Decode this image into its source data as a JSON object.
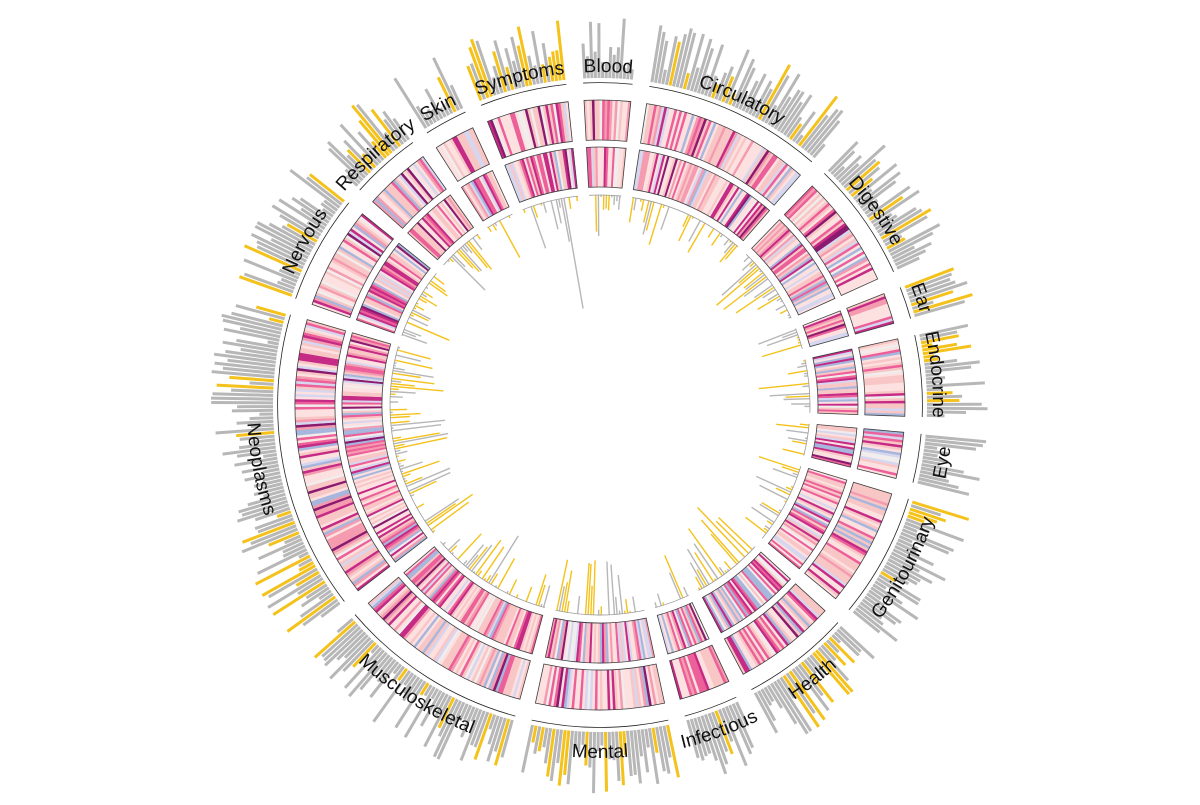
{
  "chart_data": {
    "type": "circular-heatmap",
    "title": "",
    "categories": [
      {
        "label": "Blood",
        "n": 18
      },
      {
        "label": "Circulatory",
        "n": 66
      },
      {
        "label": "Digestive",
        "n": 44
      },
      {
        "label": "Ear",
        "n": 12
      },
      {
        "label": "Endocrine",
        "n": 30
      },
      {
        "label": "Eye",
        "n": 18
      },
      {
        "label": "Genitourinary",
        "n": 46
      },
      {
        "label": "Health",
        "n": 40
      },
      {
        "label": "Infectious",
        "n": 20
      },
      {
        "label": "Mental",
        "n": 50
      },
      {
        "label": "Musculoskeletal",
        "n": 70
      },
      {
        "label": "Neoplasms",
        "n": 110
      },
      {
        "label": "Nervous",
        "n": 40
      },
      {
        "label": "Respiratory",
        "n": 26
      },
      {
        "label": "Skin",
        "n": 16
      },
      {
        "label": "Symptoms",
        "n": 32
      }
    ],
    "rings": [
      {
        "position": "outer",
        "kind": "bar",
        "colors": [
          "#b7b7b7",
          "#f4c21b"
        ]
      },
      {
        "position": "heatmap-outer",
        "kind": "heatmap"
      },
      {
        "position": "heatmap-inner",
        "kind": "heatmap"
      },
      {
        "position": "inner",
        "kind": "bar",
        "colors": [
          "#b7b7b7",
          "#f4c21b"
        ]
      }
    ],
    "heat_colors": [
      "#a7b6dc",
      "#d6d6ef",
      "#f1eded",
      "#fde0e0",
      "#f9c6c6",
      "#f59bb0",
      "#ec5f98",
      "#c52a85",
      "#8a1a6e"
    ],
    "legend": "none"
  }
}
